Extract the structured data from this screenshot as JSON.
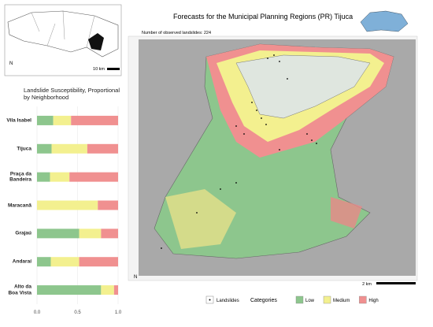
{
  "chart_data": {
    "type": "bar",
    "orientation": "horizontal",
    "stacked": true,
    "title": "Landslide Susceptibility, Proportional by Neighborhood",
    "categories": [
      "Vila Isabel",
      "Tijuca",
      "Praça da Bandeira",
      "Maracanã",
      "Grajaú",
      "Andaraí",
      "Alto da Boa Vista"
    ],
    "series": [
      {
        "name": "Low",
        "color": "#8dc68d",
        "values": [
          0.2,
          0.18,
          0.16,
          0,
          0.52,
          0.17,
          0.79
        ]
      },
      {
        "name": "Medium",
        "color": "#f3f08f",
        "values": [
          0.22,
          0.44,
          0.24,
          0.75,
          0.27,
          0.35,
          0.16
        ]
      },
      {
        "name": "High",
        "color": "#f09090",
        "values": [
          0.58,
          0.38,
          0.6,
          0.25,
          0.21,
          0.48,
          0.05
        ]
      }
    ],
    "xlim": [
      0,
      1
    ],
    "xticks": [
      {
        "value": 0,
        "label": "0.0"
      },
      {
        "value": 0.5,
        "label": "0.5"
      },
      {
        "value": 1,
        "label": "1.0"
      }
    ]
  },
  "map": {
    "title": "Forecasts for the Municipal Planning Regions (PR) Tijuca",
    "observed": "Number of observed landslides: 224",
    "inset_scale": "10 km",
    "main_scale": "2 km",
    "north": "N",
    "legend": {
      "points": "Landslides",
      "categories_title": "Categories"
    }
  }
}
